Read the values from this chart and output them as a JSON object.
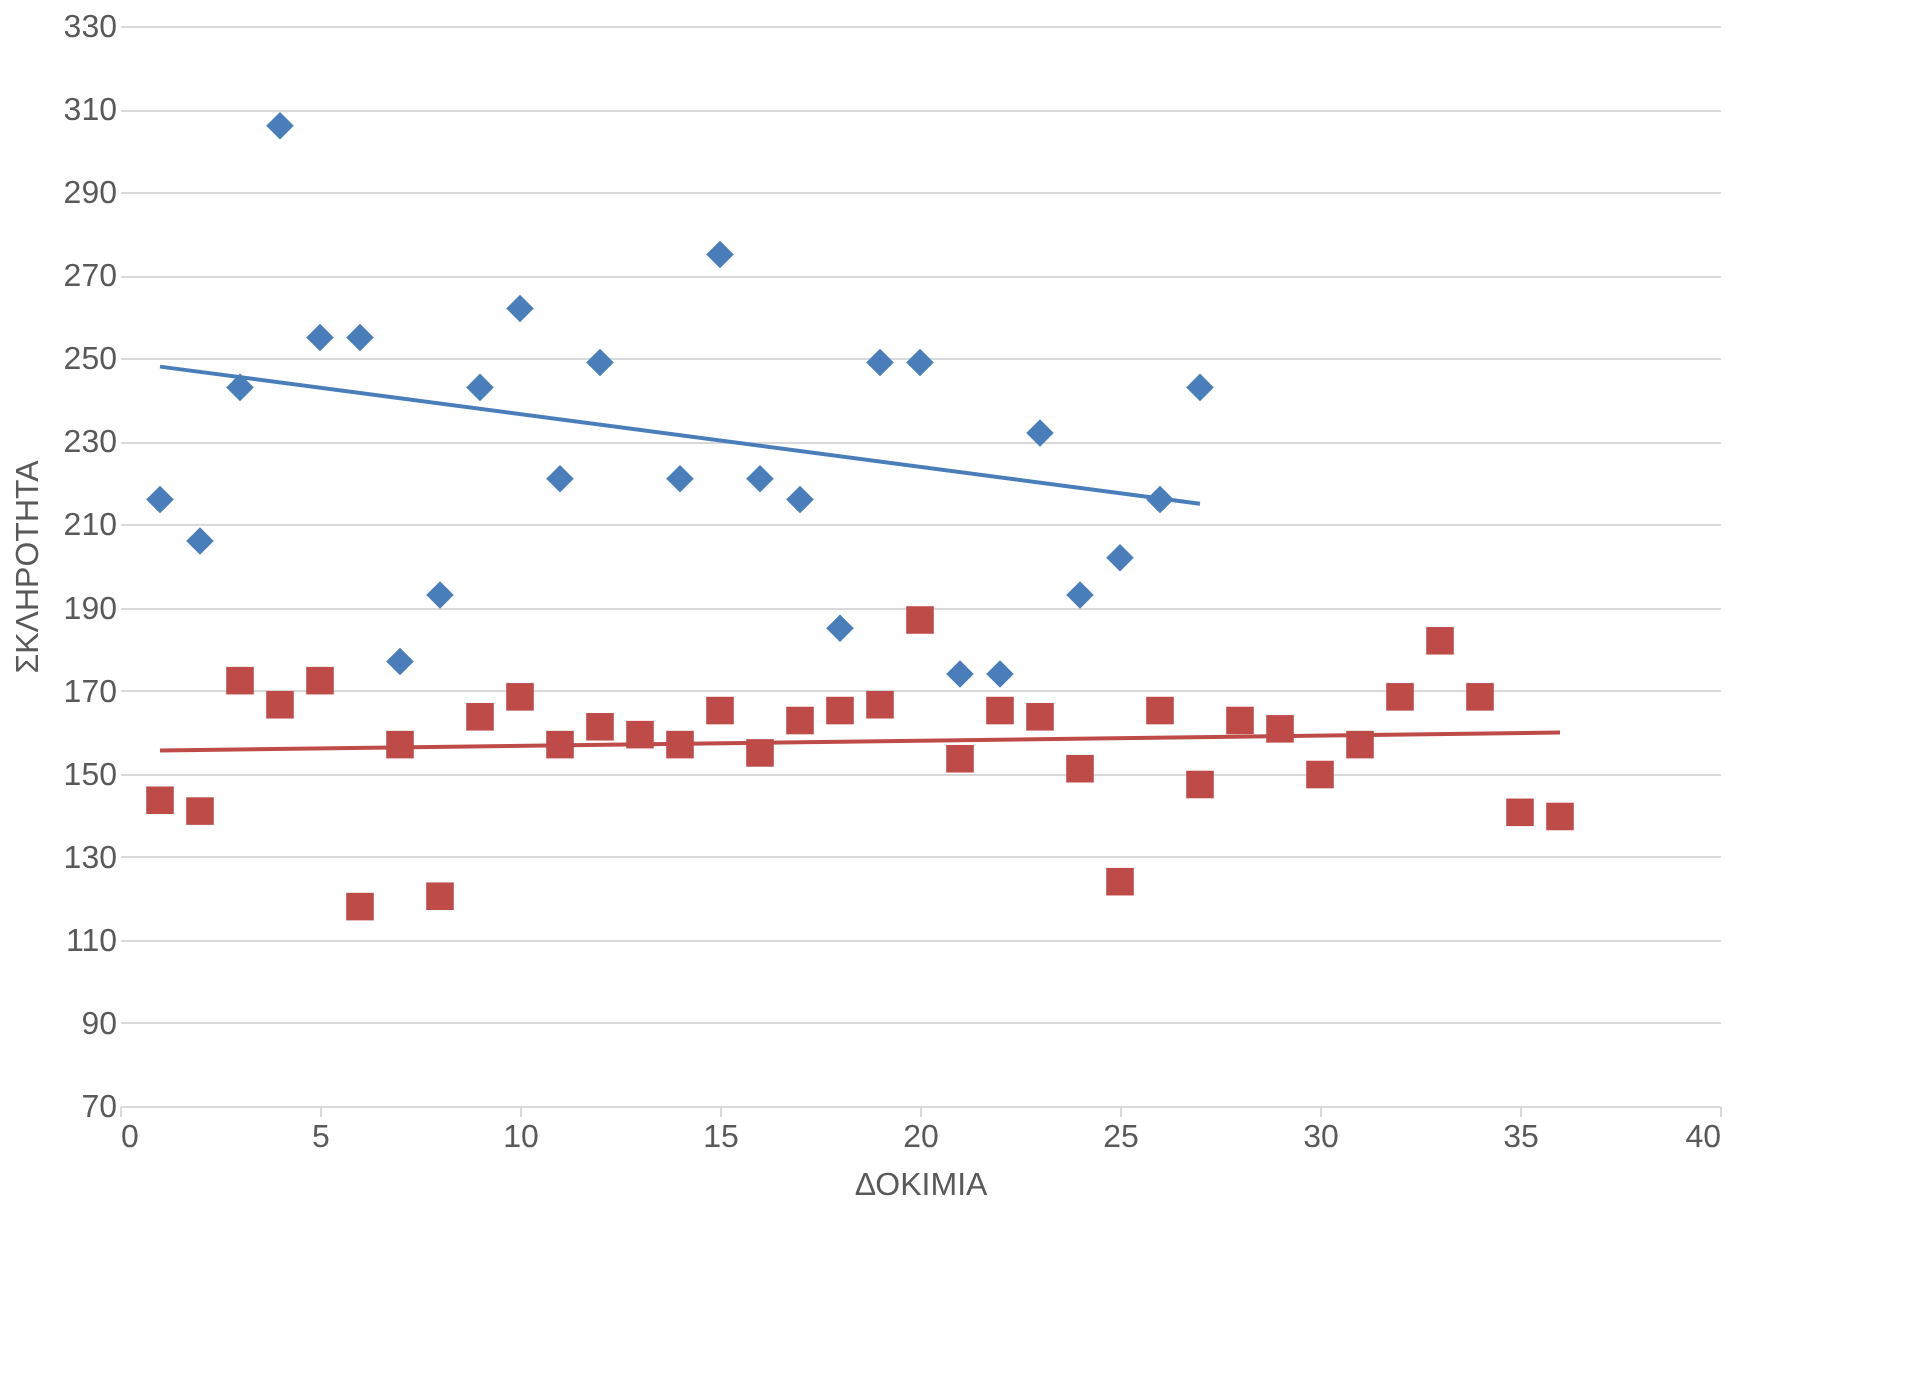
{
  "chart_data": {
    "type": "scatter",
    "xlabel": "ΔΟΚΙΜΙΑ",
    "ylabel": "ΣΚΛΗΡΟΤΗΤΑ",
    "xlim": [
      0,
      40
    ],
    "xticks": [
      0,
      5,
      10,
      15,
      20,
      25,
      30,
      35,
      40
    ],
    "ylim": [
      70,
      330
    ],
    "yticks": [
      70,
      90,
      110,
      130,
      150,
      170,
      190,
      210,
      230,
      250,
      270,
      290,
      310,
      330
    ],
    "grid": "y",
    "series": [
      {
        "marker": "diamond",
        "color": "#4a7ebb",
        "x": [
          1,
          2,
          3,
          4,
          5,
          6,
          7,
          8,
          9,
          10,
          11,
          12,
          14,
          15,
          16,
          17,
          18,
          19,
          20,
          21,
          22,
          23,
          24,
          25,
          26,
          27
        ],
        "values": [
          216,
          206,
          243,
          306,
          255,
          255,
          177,
          193,
          243,
          262,
          221,
          249,
          221,
          275,
          221,
          216,
          185,
          249,
          249,
          174,
          174,
          232,
          193,
          202,
          216,
          243
        ]
      },
      {
        "marker": "square",
        "color": "#be4b48",
        "x": [
          1,
          2,
          3,
          4,
          5,
          6,
          7,
          8,
          9,
          10,
          11,
          12,
          13,
          14,
          15,
          16,
          17,
          18,
          19,
          20,
          21,
          22,
          23,
          24,
          25,
          26,
          27,
          28,
          29,
          30,
          31,
          32,
          33,
          34,
          35,
          36
        ],
        "values": [
          143.6,
          141,
          172.4,
          166.6,
          172.4,
          118,
          157,
          120.5,
          163.7,
          168.5,
          157,
          161.3,
          159.4,
          157,
          165.2,
          155,
          162.8,
          165.2,
          166.6,
          187,
          153.6,
          165.2,
          163.7,
          151.2,
          124,
          165.2,
          147.4,
          162.8,
          160.8,
          149.8,
          157,
          168.5,
          182,
          168.5,
          140.7,
          139.7
        ]
      },
      {
        "type": "line",
        "line_style": "solid",
        "color": "#4a7ebb",
        "x": [
          1,
          27
        ],
        "values": [
          248,
          215
        ]
      },
      {
        "type": "line",
        "line_style": "solid",
        "color": "#be4b48",
        "x": [
          1,
          36
        ],
        "values": [
          155.6,
          159.9
        ]
      }
    ]
  }
}
